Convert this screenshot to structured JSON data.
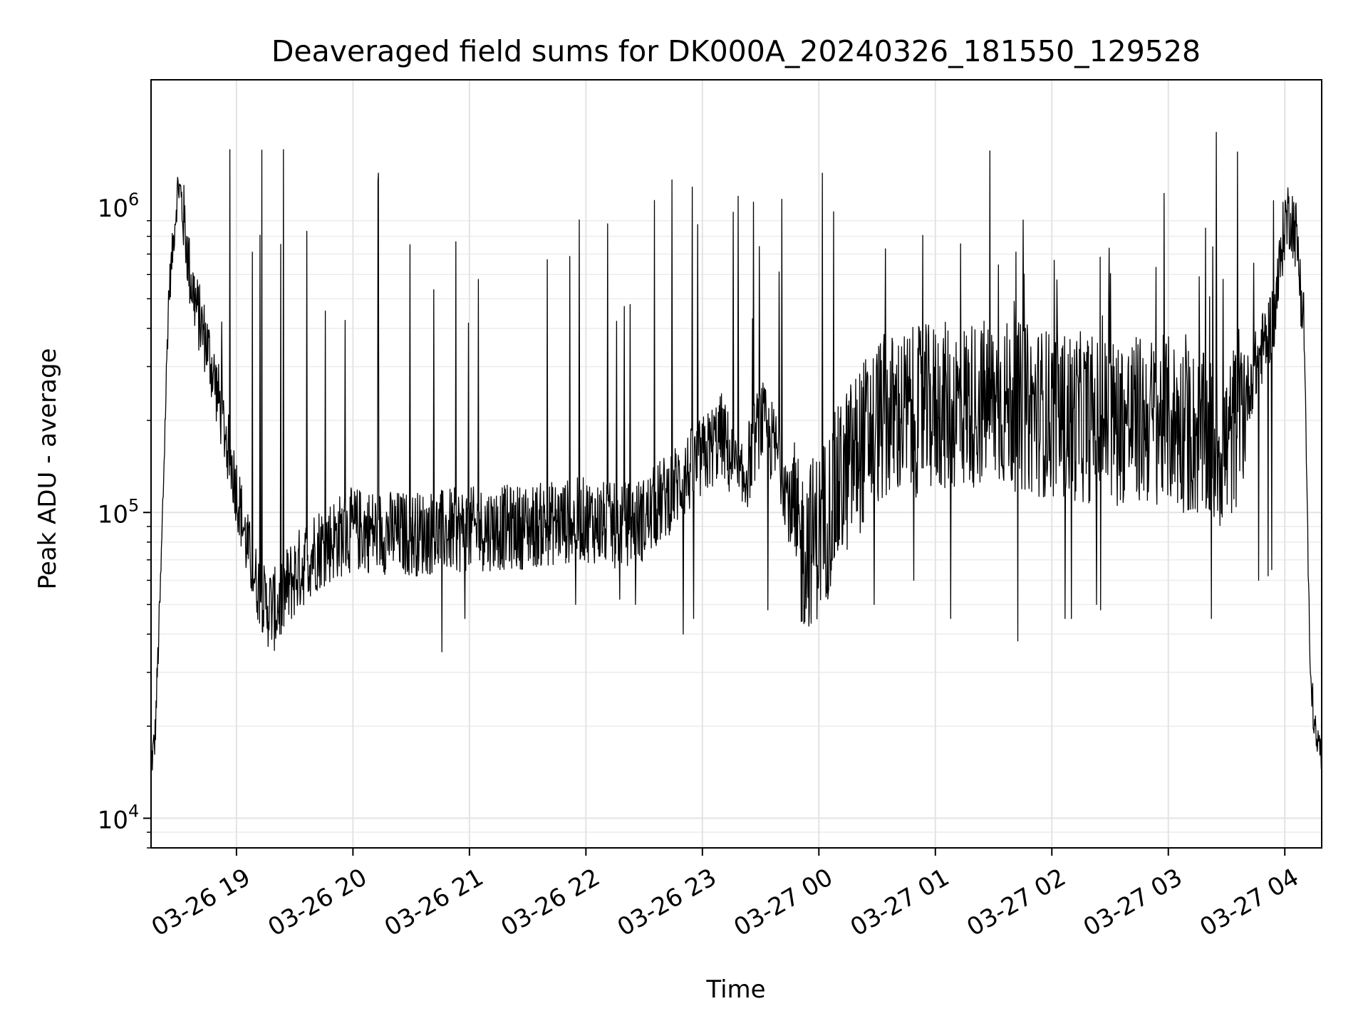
{
  "chart_data": {
    "type": "line",
    "title": "Deaveraged field sums for DK000A_20240326_181550_129528",
    "xlabel": "Time",
    "ylabel": "Peak ADU - average",
    "yscale": "log",
    "ylim": [
      8000,
      2600000
    ],
    "xlim": [
      "2024-03-26 18:16",
      "2024-03-27 04:19"
    ],
    "grid": "major and minor",
    "line_color": "#000000",
    "x_ticks": [
      {
        "value": "2024-03-26 19:00",
        "label": "03-26 19"
      },
      {
        "value": "2024-03-26 20:00",
        "label": "03-26 20"
      },
      {
        "value": "2024-03-26 21:00",
        "label": "03-26 21"
      },
      {
        "value": "2024-03-26 22:00",
        "label": "03-26 22"
      },
      {
        "value": "2024-03-26 23:00",
        "label": "03-26 23"
      },
      {
        "value": "2024-03-27 00:00",
        "label": "03-27 00"
      },
      {
        "value": "2024-03-27 01:00",
        "label": "03-27 01"
      },
      {
        "value": "2024-03-27 02:00",
        "label": "03-27 02"
      },
      {
        "value": "2024-03-27 03:00",
        "label": "03-27 03"
      },
      {
        "value": "2024-03-27 04:00",
        "label": "03-27 04"
      }
    ],
    "y_ticks": [
      {
        "value": 10000,
        "label": "10",
        "exp": "4"
      },
      {
        "value": 100000,
        "label": "10",
        "exp": "5"
      },
      {
        "value": 1000000,
        "label": "10",
        "exp": "6"
      }
    ],
    "series": [
      {
        "x": [
          "2024-03-26 18:16",
          "2024-03-26 18:18",
          "2024-03-26 18:21",
          "2024-03-26 18:25",
          "2024-03-26 18:30",
          "2024-03-26 18:33",
          "2024-03-26 18:36",
          "2024-03-26 18:40",
          "2024-03-26 18:45",
          "2024-03-26 18:50",
          "2024-03-26 18:55",
          "2024-03-26 19:00",
          "2024-03-26 19:05",
          "2024-03-26 19:10",
          "2024-03-26 19:15",
          "2024-03-26 19:20",
          "2024-03-26 19:25",
          "2024-03-26 19:30",
          "2024-03-26 19:40",
          "2024-03-26 19:50",
          "2024-03-26 20:00",
          "2024-03-26 20:30",
          "2024-03-26 21:00",
          "2024-03-26 21:30",
          "2024-03-26 22:00",
          "2024-03-26 22:15",
          "2024-03-26 22:30",
          "2024-03-26 22:45",
          "2024-03-26 23:00",
          "2024-03-26 23:10",
          "2024-03-26 23:20",
          "2024-03-26 23:30",
          "2024-03-26 23:40",
          "2024-03-26 23:50",
          "2024-03-27 00:00",
          "2024-03-27 00:15",
          "2024-03-27 00:30",
          "2024-03-27 01:00",
          "2024-03-27 01:30",
          "2024-03-27 02:00",
          "2024-03-27 02:30",
          "2024-03-27 03:00",
          "2024-03-27 03:30",
          "2024-03-27 03:45",
          "2024-03-27 03:55",
          "2024-03-27 04:00",
          "2024-03-27 04:03",
          "2024-03-27 04:06",
          "2024-03-27 04:10",
          "2024-03-27 04:13",
          "2024-03-27 04:16",
          "2024-03-27 04:19"
        ],
        "values": [
          15000,
          18000,
          60000,
          500000,
          1200000,
          900000,
          600000,
          450000,
          350000,
          250000,
          170000,
          120000,
          80000,
          60000,
          50000,
          48000,
          55000,
          62000,
          75000,
          82000,
          88000,
          85000,
          88000,
          90000,
          95000,
          90000,
          95000,
          120000,
          150000,
          180000,
          120000,
          200000,
          150000,
          75000,
          85000,
          140000,
          200000,
          220000,
          230000,
          210000,
          200000,
          200000,
          160000,
          300000,
          450000,
          900000,
          950000,
          800000,
          400000,
          30000,
          18000,
          16000
        ],
        "spikes": {
          "max": [
            1000000,
            1800000,
            900000,
            1500000,
            1800000,
            1500000,
            1600000,
            1400000,
            1200000,
            1000000,
            1300000,
            1500000,
            1600000,
            1200000,
            1000000,
            800000,
            1300000,
            1000000,
            900000,
            1300000,
            900000,
            700000,
            1000000,
            1200000,
            1400000,
            1600000,
            1300000,
            1000000
          ],
          "min": [
            40000,
            35000,
            45000,
            50000,
            52000,
            50000,
            40000,
            45000,
            48000,
            50000,
            60000,
            45000,
            38000,
            45000,
            45000,
            50000,
            48000,
            45000,
            60000,
            62000,
            65000,
            62000
          ]
        }
      }
    ]
  }
}
